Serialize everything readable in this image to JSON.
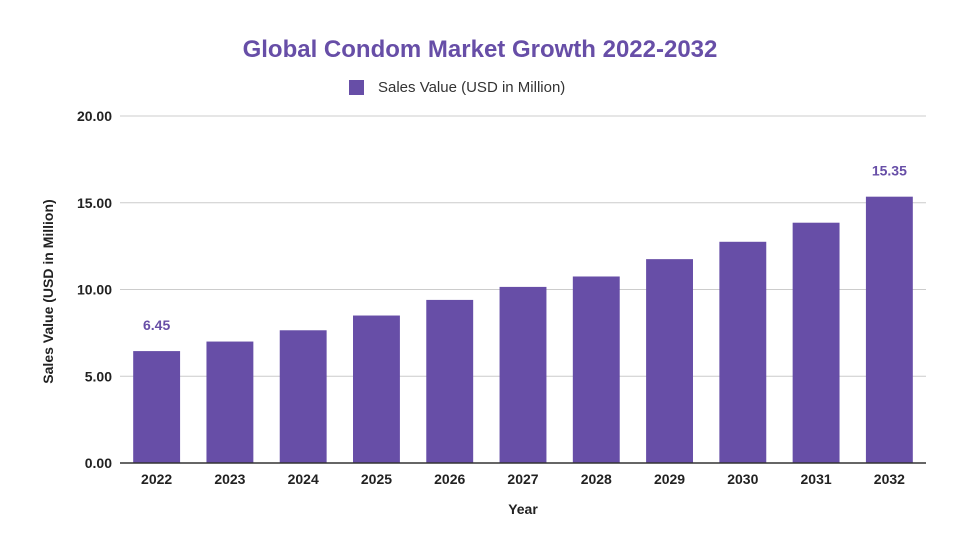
{
  "chart_data": {
    "type": "bar",
    "title": "Global Condom Market Growth 2022-2032",
    "xlabel": "Year",
    "ylabel": "Sales Value (USD in Million)",
    "categories": [
      "2022",
      "2023",
      "2024",
      "2025",
      "2026",
      "2027",
      "2028",
      "2029",
      "2030",
      "2031",
      "2032"
    ],
    "series": [
      {
        "name": "Sales Value (USD in Million)",
        "values": [
          6.45,
          7.0,
          7.65,
          8.5,
          9.4,
          10.15,
          10.75,
          11.75,
          12.75,
          13.85,
          15.35
        ]
      }
    ],
    "ylim": [
      0,
      20
    ],
    "yticks": [
      "0.00",
      "5.00",
      "10.00",
      "15.00",
      "20.00"
    ],
    "yticks_values": [
      0,
      5,
      10,
      15,
      20
    ],
    "data_labels": [
      {
        "category": "2022",
        "text": "6.45"
      },
      {
        "category": "2032",
        "text": "15.35"
      }
    ],
    "grid": true,
    "legend": "top-center",
    "colors": {
      "bar": "#674ea7",
      "title": "#674ea7",
      "grid": "#cccccc",
      "axis": "#333333"
    }
  }
}
